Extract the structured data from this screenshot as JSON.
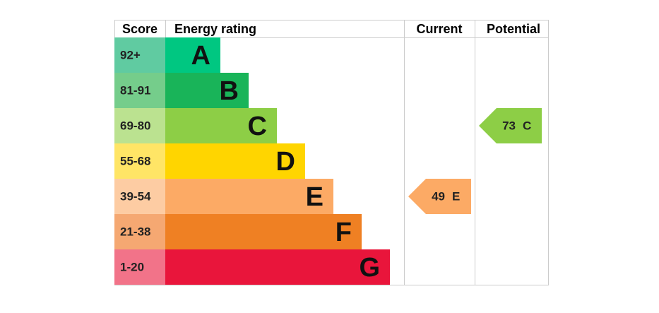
{
  "header": {
    "score": "Score",
    "energy_rating": "Energy rating",
    "current": "Current",
    "potential": "Potential"
  },
  "bands": [
    {
      "score": "92+",
      "letter": "A",
      "color": "#00c781",
      "score_color": "#60cba1"
    },
    {
      "score": "81-91",
      "letter": "B",
      "color": "#19b459",
      "score_color": "#75cd8b"
    },
    {
      "score": "69-80",
      "letter": "C",
      "color": "#8dce46",
      "score_color": "#bbe290"
    },
    {
      "score": "55-68",
      "letter": "D",
      "color": "#ffd500",
      "score_color": "#ffe566"
    },
    {
      "score": "39-54",
      "letter": "E",
      "color": "#fcaa65",
      "score_color": "#fdcca3"
    },
    {
      "score": "21-38",
      "letter": "F",
      "color": "#ef8023",
      "score_color": "#f5a872"
    },
    {
      "score": "1-20",
      "letter": "G",
      "color": "#e9153b",
      "score_color": "#f27389"
    }
  ],
  "current": {
    "value": 49,
    "rating": "E"
  },
  "potential": {
    "value": 73,
    "rating": "C"
  }
}
